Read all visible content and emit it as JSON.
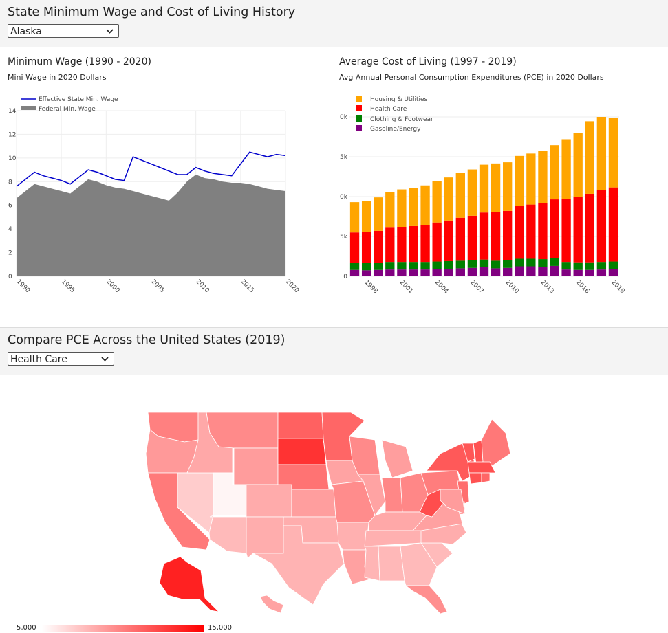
{
  "header": {
    "title": "State Minimum Wage and Cost of Living History",
    "state_select": "Alaska"
  },
  "min_wage": {
    "title": "Minimum Wage (1990 - 2020)",
    "subtitle": "Mini Wage in 2020 Dollars",
    "legend": [
      "Effective State Min. Wage",
      "Federal Min. Wage"
    ],
    "colors": {
      "state": "#0000cc",
      "federal": "#808080"
    }
  },
  "pce": {
    "title": "Average Cost of Living (1997 - 2019)",
    "subtitle": "Avg Annual Personal Consumption Expenditures (PCE) in 2020 Dollars",
    "legend": [
      "Housing & Utilities",
      "Health Care",
      "Clothing & Footwear",
      "Gasoline/Energy"
    ],
    "colors": [
      "#ffa500",
      "#ff0000",
      "#008000",
      "#800080"
    ]
  },
  "compare": {
    "title": "Compare PCE Across the United States (2019)",
    "category_select": "Health Care",
    "scale_min_label": "5,000",
    "scale_max_label": "15,000",
    "scale_colors": [
      "#ffffff",
      "#ff0000"
    ]
  },
  "chart_data": [
    {
      "type": "area",
      "title": "Minimum Wage (1990 - 2020)",
      "subtitle": "Mini Wage in 2020 Dollars",
      "x_ticks": [
        "1990",
        "1995",
        "2000",
        "2005",
        "2010",
        "2015",
        "2020"
      ],
      "y_ticks": [
        "0",
        "2",
        "4",
        "6",
        "8",
        "10",
        "12",
        "14"
      ],
      "xlim": [
        1990,
        2020
      ],
      "ylim": [
        0,
        14
      ],
      "x": [
        1990,
        1991,
        1992,
        1993,
        1994,
        1995,
        1996,
        1997,
        1998,
        1999,
        2000,
        2001,
        2002,
        2003,
        2004,
        2005,
        2006,
        2007,
        2008,
        2009,
        2010,
        2011,
        2012,
        2013,
        2014,
        2015,
        2016,
        2017,
        2018,
        2019,
        2020
      ],
      "series": [
        {
          "name": "Effective State Min. Wage",
          "values": [
            7.6,
            8.2,
            8.8,
            8.5,
            8.3,
            8.1,
            7.8,
            8.4,
            9.0,
            8.8,
            8.5,
            8.2,
            8.1,
            10.1,
            9.8,
            9.5,
            9.2,
            8.9,
            8.6,
            8.6,
            9.2,
            8.9,
            8.7,
            8.6,
            8.5,
            9.5,
            10.5,
            10.3,
            10.1,
            10.3,
            10.2
          ]
        },
        {
          "name": "Federal Min. Wage",
          "values": [
            6.6,
            7.2,
            7.8,
            7.6,
            7.4,
            7.2,
            7.0,
            7.6,
            8.2,
            8.0,
            7.7,
            7.5,
            7.4,
            7.2,
            7.0,
            6.8,
            6.6,
            6.4,
            7.1,
            8.0,
            8.6,
            8.3,
            8.2,
            8.0,
            7.9,
            7.9,
            7.8,
            7.6,
            7.4,
            7.3,
            7.2
          ]
        }
      ]
    },
    {
      "type": "bar",
      "stacked": true,
      "title": "Average Cost of Living (1997 - 2019)",
      "subtitle": "Avg Annual Personal Consumption Expenditures (PCE) in 2020 Dollars",
      "categories": [
        "1997",
        "1998",
        "1999",
        "2000",
        "2001",
        "2002",
        "2003",
        "2004",
        "2005",
        "2006",
        "2007",
        "2008",
        "2009",
        "2010",
        "2011",
        "2012",
        "2013",
        "2014",
        "2015",
        "2016",
        "2017",
        "2018",
        "2019"
      ],
      "x_tick_labels": [
        "1998",
        "2001",
        "2004",
        "2007",
        "2010",
        "2013",
        "2016",
        "2019"
      ],
      "y_tick_labels": [
        "0",
        "5k",
        "0k",
        "5k",
        "0k"
      ],
      "ylim": [
        0,
        20000
      ],
      "series": [
        {
          "name": "Gasoline/Energy",
          "values": [
            800,
            750,
            800,
            850,
            850,
            850,
            850,
            900,
            950,
            1000,
            1050,
            1150,
            1000,
            1050,
            1250,
            1250,
            1200,
            1300,
            850,
            800,
            800,
            850,
            900
          ]
        },
        {
          "name": "Clothing & Footwear",
          "values": [
            900,
            900,
            900,
            950,
            950,
            950,
            950,
            950,
            950,
            950,
            950,
            950,
            950,
            950,
            950,
            950,
            950,
            950,
            950,
            950,
            950,
            950,
            950
          ]
        },
        {
          "name": "Health Care",
          "values": [
            3800,
            3900,
            4000,
            4300,
            4400,
            4500,
            4600,
            4900,
            5100,
            5400,
            5600,
            5900,
            6100,
            6200,
            6600,
            6800,
            7000,
            7400,
            7900,
            8200,
            8600,
            9000,
            9300
          ]
        },
        {
          "name": "Housing & Utilities",
          "values": [
            3800,
            3900,
            4200,
            4500,
            4700,
            4800,
            5000,
            5200,
            5400,
            5600,
            5800,
            6000,
            6100,
            6100,
            6300,
            6400,
            6600,
            6800,
            7500,
            8000,
            9100,
            9200,
            8700
          ]
        }
      ]
    },
    {
      "type": "heatmap",
      "title": "Compare PCE Across the United States (2019)",
      "variable": "Health Care",
      "colorscale_range": [
        5000,
        15000
      ],
      "colorscale_labels": [
        "5,000",
        "15,000"
      ],
      "values": {
        "WA": 10000,
        "OR": 9000,
        "CA": 10200,
        "NV": 7000,
        "ID": 8400,
        "MT": 9600,
        "WY": 8900,
        "UT": 5400,
        "CO": 8300,
        "AZ": 7700,
        "NM": 8200,
        "ND": 11200,
        "SD": 13000,
        "NE": 10500,
        "KS": 8800,
        "OK": 8200,
        "TX": 8000,
        "MN": 11000,
        "IA": 8600,
        "MO": 9500,
        "AR": 8100,
        "LA": 8700,
        "WI": 9600,
        "IL": 8600,
        "MI": 8800,
        "IN": 9700,
        "OH": 9700,
        "KY": 8400,
        "TN": 8100,
        "MS": 7900,
        "AL": 7800,
        "GA": 7700,
        "FL": 9400,
        "SC": 7700,
        "NC": 8200,
        "VA": 8700,
        "WV": 12000,
        "PA": 10100,
        "NY": 11500,
        "VT": 11600,
        "NH": 11800,
        "ME": 10300,
        "MA": 11900,
        "CT": 11800,
        "RI": 11000,
        "NJ": 10700,
        "DE": 10800,
        "MD": 8900,
        "AK": 13700,
        "HI": 8600
      }
    }
  ]
}
